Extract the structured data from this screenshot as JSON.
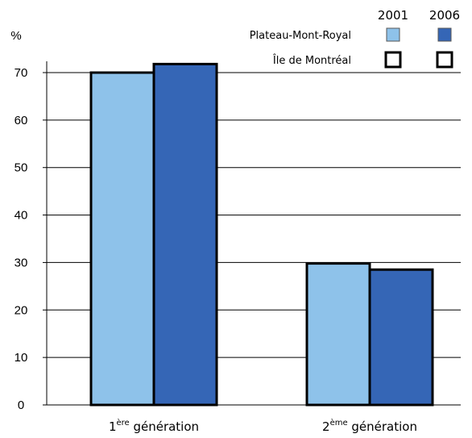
{
  "chart_data": {
    "type": "bar",
    "ylabel": "%",
    "ylim": [
      0,
      70
    ],
    "yticks": [
      0,
      10,
      20,
      30,
      40,
      50,
      60,
      70
    ],
    "grid": true,
    "categories": [
      {
        "main": "1",
        "sup": "ère",
        "rest": " génération"
      },
      {
        "main": "2",
        "sup": "ème",
        "rest": " génération"
      }
    ],
    "series": [
      {
        "name": "2001",
        "color": "#8ec2ea",
        "values": [
          70.0,
          29.8
        ]
      },
      {
        "name": "2006",
        "color": "#3566b6",
        "values": [
          71.8,
          28.5
        ]
      }
    ],
    "legend": {
      "placement": "top-right",
      "years": [
        "2001",
        "2006"
      ],
      "rows": [
        {
          "label": "Plateau-Mont-Royal",
          "style": "filled"
        },
        {
          "label": "Île de Montréal",
          "style": "outline"
        }
      ]
    }
  }
}
